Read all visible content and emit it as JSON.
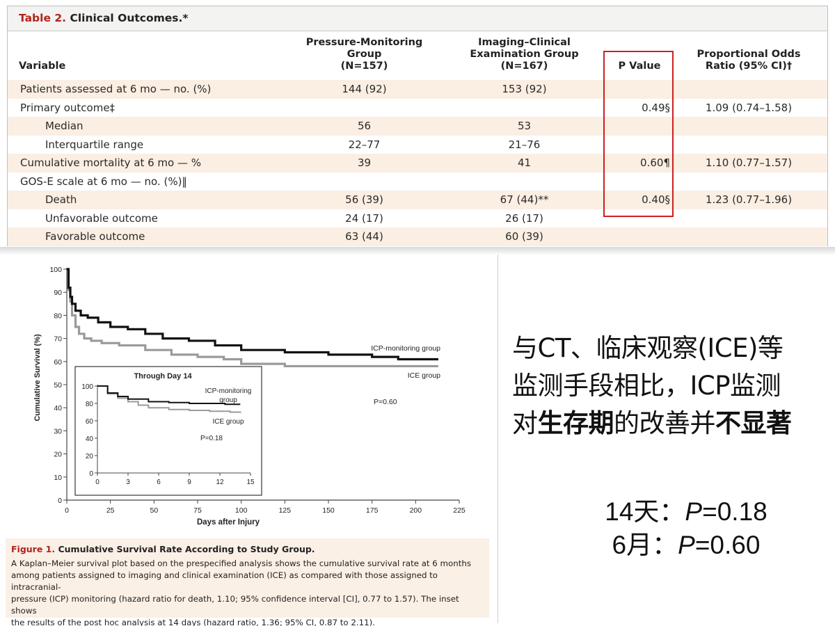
{
  "table": {
    "title_label": "Table 2.",
    "title_text": "Clinical Outcomes.*",
    "columns": {
      "variable": "Variable",
      "group1": [
        "Pressure-Monitoring",
        "Group",
        "(N=157)"
      ],
      "group2": [
        "Imaging–Clinical",
        "Examination Group",
        "(N=167)"
      ],
      "pvalue": "P Value",
      "odds": [
        "Proportional Odds",
        "Ratio (95% CI)†"
      ]
    },
    "rows": [
      {
        "variable": "Patients assessed at 6 mo — no. (%)",
        "group1": "144 (92)",
        "group2": "153 (92)",
        "pvalue": "",
        "odds": ""
      },
      {
        "variable": "Primary outcome‡",
        "group1": "",
        "group2": "",
        "pvalue": "0.49§",
        "odds": "1.09 (0.74–1.58)"
      },
      {
        "variable": "Median",
        "group1": "56",
        "group2": "53",
        "pvalue": "",
        "odds": ""
      },
      {
        "variable": "Interquartile range",
        "group1": "22–77",
        "group2": "21–76",
        "pvalue": "",
        "odds": ""
      },
      {
        "variable": "Cumulative mortality at 6 mo — %",
        "group1": "39",
        "group2": "41",
        "pvalue": "0.60¶",
        "odds": "1.10 (0.77–1.57)"
      },
      {
        "variable": "GOS-E scale at 6 mo — no. (%)‖",
        "group1": "",
        "group2": "",
        "pvalue": "",
        "odds": ""
      },
      {
        "variable": "Death",
        "group1": "56 (39)",
        "group2": "67 (44)**",
        "pvalue": "0.40§",
        "odds": "1.23 (0.77–1.96)"
      },
      {
        "variable": "Unfavorable outcome",
        "group1": "24 (17)",
        "group2": "26 (17)",
        "pvalue": "",
        "odds": ""
      },
      {
        "variable": "Favorable outcome",
        "group1": "63 (44)",
        "group2": "60 (39)",
        "pvalue": "",
        "odds": ""
      }
    ]
  },
  "chart_data": [
    {
      "type": "line",
      "title": "",
      "ylabel": "Cumulative Survival (%)",
      "xlabel": "Days after Injury",
      "xlim": [
        0,
        225
      ],
      "ylim": [
        0,
        100
      ],
      "xticks": [
        0,
        25,
        50,
        75,
        100,
        125,
        150,
        175,
        200,
        225
      ],
      "yticks": [
        0,
        10,
        20,
        30,
        40,
        50,
        60,
        70,
        80,
        90,
        100
      ],
      "annotation": "P=0.60",
      "series": [
        {
          "name": "ICP-monitoring group",
          "color": "#111111",
          "x": [
            0,
            1,
            2,
            3,
            5,
            8,
            12,
            18,
            25,
            35,
            45,
            55,
            70,
            85,
            100,
            125,
            150,
            175,
            190,
            213
          ],
          "y": [
            100,
            92,
            88,
            85,
            82,
            80,
            79,
            77,
            75,
            74,
            72,
            70,
            69,
            67,
            65,
            64,
            63,
            62,
            61,
            61
          ]
        },
        {
          "name": "ICE group",
          "color": "#9a9a9a",
          "x": [
            0,
            1,
            2,
            3,
            5,
            7,
            10,
            14,
            20,
            30,
            45,
            60,
            75,
            90,
            100,
            125,
            150,
            175,
            213
          ],
          "y": [
            100,
            91,
            86,
            80,
            75,
            72,
            70,
            69,
            68,
            67,
            65,
            63,
            62,
            61,
            59,
            58,
            58,
            58,
            58
          ]
        }
      ]
    },
    {
      "type": "line",
      "title": "Through Day 14",
      "xlim": [
        0,
        15
      ],
      "ylim": [
        0,
        100
      ],
      "xticks": [
        0,
        3,
        6,
        9,
        12,
        15
      ],
      "yticks": [
        0,
        20,
        40,
        60,
        80,
        100
      ],
      "annotation": "P=0.18",
      "series": [
        {
          "name": "ICP-monitoring group",
          "color": "#111111",
          "x": [
            0,
            1,
            2,
            3,
            5,
            7,
            9,
            11,
            12.5,
            14
          ],
          "y": [
            100,
            92,
            88,
            85,
            82,
            81,
            80,
            80,
            79,
            79
          ]
        },
        {
          "name": "ICE group",
          "color": "#9a9a9a",
          "x": [
            0,
            1,
            2,
            3,
            4,
            5,
            7,
            9,
            11,
            13,
            14
          ],
          "y": [
            100,
            91,
            86,
            82,
            78,
            75,
            73,
            72,
            71,
            70,
            69
          ]
        }
      ]
    }
  ],
  "figure": {
    "caption_label": "Figure 1.",
    "caption_title": "Cumulative Survival Rate According to Study Group.",
    "caption_lines": [
      "A Kaplan–Meier survival plot based on the prespecified analysis shows the cumulative survival rate at 6 months",
      "among patients assigned to imaging and clinical examination (ICE) as compared with those assigned to intracranial-",
      "pressure (ICP) monitoring (hazard ratio for death, 1.10; 95% confidence interval [CI], 0.77 to 1.57). The inset shows",
      "the results of the post hoc analysis at 14 days (hazard ratio, 1.36; 95% CI, 0.87 to 2.11)."
    ],
    "main_legend": {
      "icp": "ICP-monitoring group",
      "ice": "ICE group"
    },
    "inset_legend": {
      "icp_line1": "ICP-monitoring",
      "icp_line2": "group",
      "ice": "ICE group"
    }
  },
  "commentary": {
    "line1": "与CT、临床观察(ICE)等",
    "line2": "监测手段相比，ICP监测",
    "line3_a": "对",
    "line3_b": "生存期",
    "line3_c": "的改善并",
    "line3_d": "不显著",
    "p14_label": "14天：",
    "p14_p": "P",
    "p14_val": "=0.18",
    "p6_label": "6月：",
    "p6_p": "P",
    "p6_val": "=0.60"
  }
}
